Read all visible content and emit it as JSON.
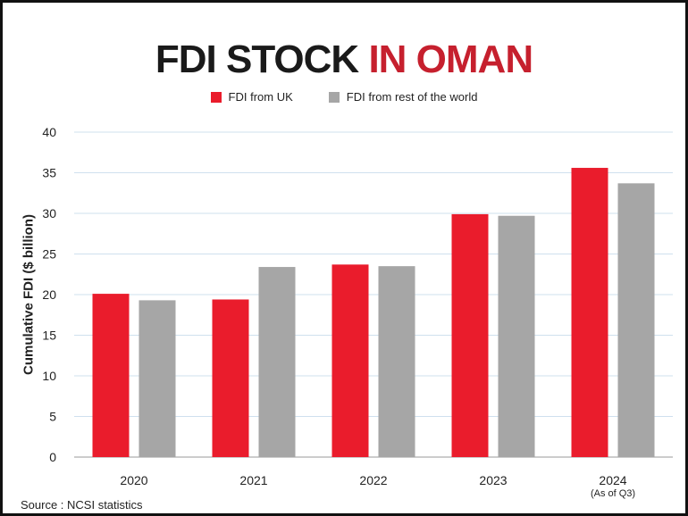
{
  "title_part1": "FDI STOCK",
  "title_part2": "IN OMAN",
  "source": "Source : NCSI statistics",
  "chart_data": {
    "type": "bar",
    "title": "FDI STOCK IN OMAN",
    "ylabel": "Cumulative FDI ($ billion)",
    "xlabel": "",
    "categories": [
      "2020",
      "2021",
      "2022",
      "2023",
      "2024"
    ],
    "category_sublabels": [
      "",
      "",
      "",
      "",
      "(As of Q3)"
    ],
    "series": [
      {
        "name": "FDI from UK",
        "color": "#ea1c2c",
        "values": [
          20.1,
          19.4,
          23.7,
          29.9,
          35.6
        ]
      },
      {
        "name": "FDI from rest of the world",
        "color": "#a6a6a6",
        "values": [
          19.3,
          23.4,
          23.5,
          29.7,
          33.7
        ]
      }
    ],
    "ylim": [
      0,
      40
    ],
    "yticks": [
      0,
      5,
      10,
      15,
      20,
      25,
      30,
      35,
      40
    ],
    "grid": true,
    "legend_position": "top-center"
  }
}
